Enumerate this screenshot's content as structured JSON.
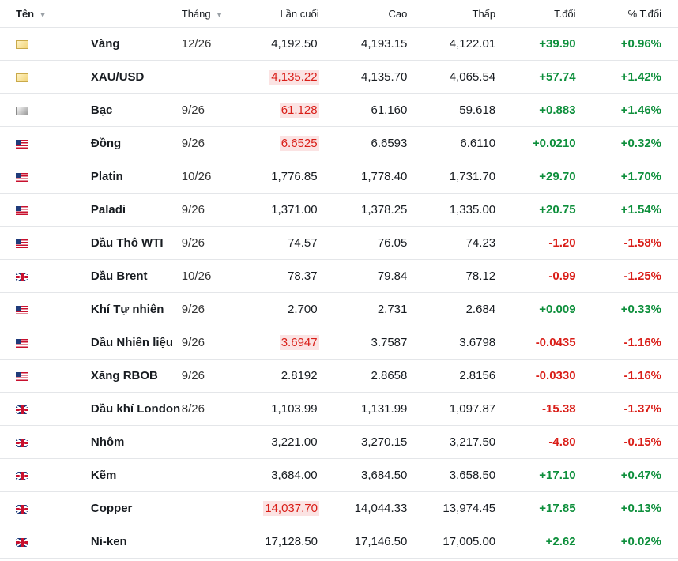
{
  "header": {
    "name": "Tên",
    "month": "Tháng",
    "last": "Lần cuối",
    "high": "Cao",
    "low": "Thấp",
    "change": "T.đổi",
    "pct_change": "% T.đổi"
  },
  "colors": {
    "up": "#0e8f3c",
    "down": "#d91e18",
    "flash_bg": "#fbe3e3"
  },
  "rows": [
    {
      "flag": "gold-icon",
      "name": "Vàng",
      "month": "12/26",
      "last": "4,192.50",
      "last_flash": false,
      "high": "4,193.15",
      "low": "4,122.01",
      "change": "+39.90",
      "pct": "+0.96%",
      "dir": "up"
    },
    {
      "flag": "gold-icon",
      "name": "XAU/USD",
      "month": "",
      "last": "4,135.22",
      "last_flash": true,
      "high": "4,135.70",
      "low": "4,065.54",
      "change": "+57.74",
      "pct": "+1.42%",
      "dir": "up"
    },
    {
      "flag": "silver-icon",
      "name": "Bạc",
      "month": "9/26",
      "last": "61.128",
      "last_flash": true,
      "high": "61.160",
      "low": "59.618",
      "change": "+0.883",
      "pct": "+1.46%",
      "dir": "up"
    },
    {
      "flag": "us-flag-icon",
      "name": "Đồng",
      "month": "9/26",
      "last": "6.6525",
      "last_flash": true,
      "high": "6.6593",
      "low": "6.6110",
      "change": "+0.0210",
      "pct": "+0.32%",
      "dir": "up"
    },
    {
      "flag": "us-flag-icon",
      "name": "Platin",
      "month": "10/26",
      "last": "1,776.85",
      "last_flash": false,
      "high": "1,778.40",
      "low": "1,731.70",
      "change": "+29.70",
      "pct": "+1.70%",
      "dir": "up"
    },
    {
      "flag": "us-flag-icon",
      "name": "Paladi",
      "month": "9/26",
      "last": "1,371.00",
      "last_flash": false,
      "high": "1,378.25",
      "low": "1,335.00",
      "change": "+20.75",
      "pct": "+1.54%",
      "dir": "up"
    },
    {
      "flag": "us-flag-icon",
      "name": "Dầu Thô WTI",
      "month": "9/26",
      "last": "74.57",
      "last_flash": false,
      "high": "76.05",
      "low": "74.23",
      "change": "-1.20",
      "pct": "-1.58%",
      "dir": "down"
    },
    {
      "flag": "uk-flag-icon",
      "name": "Dầu Brent",
      "month": "10/26",
      "last": "78.37",
      "last_flash": false,
      "high": "79.84",
      "low": "78.12",
      "change": "-0.99",
      "pct": "-1.25%",
      "dir": "down"
    },
    {
      "flag": "us-flag-icon",
      "name": "Khí Tự nhiên",
      "month": "9/26",
      "last": "2.700",
      "last_flash": false,
      "high": "2.731",
      "low": "2.684",
      "change": "+0.009",
      "pct": "+0.33%",
      "dir": "up"
    },
    {
      "flag": "us-flag-icon",
      "name": "Dầu Nhiên liệu",
      "month": "9/26",
      "last": "3.6947",
      "last_flash": true,
      "high": "3.7587",
      "low": "3.6798",
      "change": "-0.0435",
      "pct": "-1.16%",
      "dir": "down"
    },
    {
      "flag": "us-flag-icon",
      "name": "Xăng RBOB",
      "month": "9/26",
      "last": "2.8192",
      "last_flash": false,
      "high": "2.8658",
      "low": "2.8156",
      "change": "-0.0330",
      "pct": "-1.16%",
      "dir": "down"
    },
    {
      "flag": "uk-flag-icon",
      "name": "Dầu khí London",
      "month": "8/26",
      "last": "1,103.99",
      "last_flash": false,
      "high": "1,131.99",
      "low": "1,097.87",
      "change": "-15.38",
      "pct": "-1.37%",
      "dir": "down"
    },
    {
      "flag": "uk-flag-icon",
      "name": "Nhôm",
      "month": "",
      "last": "3,221.00",
      "last_flash": false,
      "high": "3,270.15",
      "low": "3,217.50",
      "change": "-4.80",
      "pct": "-0.15%",
      "dir": "down"
    },
    {
      "flag": "uk-flag-icon",
      "name": "Kẽm",
      "month": "",
      "last": "3,684.00",
      "last_flash": false,
      "high": "3,684.50",
      "low": "3,658.50",
      "change": "+17.10",
      "pct": "+0.47%",
      "dir": "up"
    },
    {
      "flag": "uk-flag-icon",
      "name": "Copper",
      "month": "",
      "last": "14,037.70",
      "last_flash": true,
      "high": "14,044.33",
      "low": "13,974.45",
      "change": "+17.85",
      "pct": "+0.13%",
      "dir": "up"
    },
    {
      "flag": "uk-flag-icon",
      "name": "Ni-ken",
      "month": "",
      "last": "17,128.50",
      "last_flash": false,
      "high": "17,146.50",
      "low": "17,005.00",
      "change": "+2.62",
      "pct": "+0.02%",
      "dir": "up"
    }
  ]
}
